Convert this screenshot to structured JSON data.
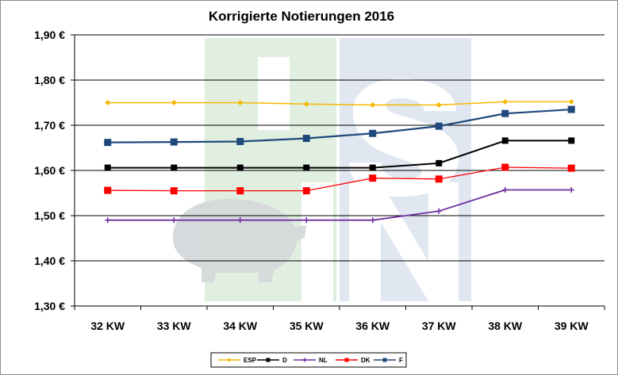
{
  "chart_data": {
    "type": "line",
    "title": "Korrigierte Notierungen 2016",
    "xlabel": "",
    "ylabel": "",
    "categories": [
      "32 KW",
      "33 KW",
      "34 KW",
      "35 KW",
      "36 KW",
      "37 KW",
      "38 KW",
      "39 KW"
    ],
    "ylim": [
      1.3,
      1.9
    ],
    "yticks": [
      {
        "value": 1.9,
        "label": "1,90 €"
      },
      {
        "value": 1.8,
        "label": "1,80 €"
      },
      {
        "value": 1.7,
        "label": "1,70 €"
      },
      {
        "value": 1.6,
        "label": "1,60 €"
      },
      {
        "value": 1.5,
        "label": "1,50 €"
      },
      {
        "value": 1.4,
        "label": "1,40 €"
      },
      {
        "value": 1.3,
        "label": "1,30 €"
      }
    ],
    "grid": true,
    "legend_position": "bottom",
    "series": [
      {
        "name": "ESP",
        "color": "#f5b800",
        "marker": "diamond",
        "values": [
          1.75,
          1.75,
          1.75,
          1.747,
          1.745,
          1.745,
          1.752,
          1.752
        ]
      },
      {
        "name": "D",
        "color": "#000000",
        "marker": "square",
        "values": [
          1.606,
          1.606,
          1.606,
          1.606,
          1.606,
          1.616,
          1.666,
          1.666
        ]
      },
      {
        "name": "NL",
        "color": "#7030a0",
        "marker": "cross",
        "values": [
          1.49,
          1.49,
          1.49,
          1.49,
          1.49,
          1.51,
          1.557,
          1.557
        ]
      },
      {
        "name": "DK",
        "color": "#ff0000",
        "marker": "square",
        "values": [
          1.556,
          1.555,
          1.555,
          1.555,
          1.583,
          1.581,
          1.607,
          1.605
        ]
      },
      {
        "name": "F",
        "color": "#1f497d",
        "marker": "square",
        "values": [
          1.662,
          1.663,
          1.664,
          1.671,
          1.682,
          1.698,
          1.726,
          1.735
        ]
      }
    ]
  }
}
